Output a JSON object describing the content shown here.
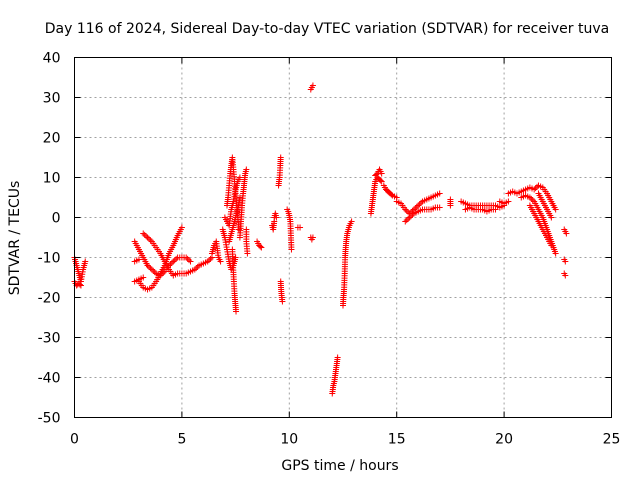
{
  "chart_data": {
    "type": "scatter",
    "title": "Day 116 of 2024, Sidereal Day-to-day VTEC variation (SDTVAR) for receiver tuva",
    "xlabel": "GPS time / hours",
    "ylabel": "SDTVAR / TECUs",
    "xlim": [
      0,
      25
    ],
    "ylim": [
      -50,
      40
    ],
    "xticks": [
      "0",
      "5",
      "10",
      "15",
      "20",
      "25"
    ],
    "xtick_values": [
      0,
      5,
      10,
      15,
      20,
      25
    ],
    "yticks": [
      "40",
      "30",
      "20",
      "10",
      "0",
      "-10",
      "-20",
      "-30",
      "-40",
      "-50"
    ],
    "ytick_values": [
      40,
      30,
      20,
      10,
      0,
      -10,
      -20,
      -30,
      -40,
      -50
    ],
    "grid": true,
    "marker": "+",
    "marker_color": "#ff0000",
    "series": [
      {
        "name": "SDTVAR",
        "tracks": [
          [
            [
              0.0,
              -10
            ],
            [
              0.1,
              -12
            ],
            [
              0.2,
              -14
            ],
            [
              0.3,
              -16
            ],
            [
              0.4,
              -13
            ],
            [
              0.5,
              -11
            ]
          ],
          [
            [
              0.0,
              -16
            ],
            [
              0.1,
              -17
            ],
            [
              0.2,
              -16.5
            ],
            [
              0.3,
              -17
            ]
          ],
          [
            [
              2.8,
              -6
            ],
            [
              3.0,
              -8
            ],
            [
              3.2,
              -10
            ],
            [
              3.4,
              -12
            ],
            [
              3.6,
              -13
            ],
            [
              3.8,
              -14
            ],
            [
              4.0,
              -14.5
            ],
            [
              4.2,
              -13.5
            ],
            [
              4.4,
              -12
            ],
            [
              4.6,
              -11
            ],
            [
              4.8,
              -10
            ],
            [
              5.0,
              -10
            ],
            [
              5.2,
              -10
            ],
            [
              5.4,
              -11
            ]
          ],
          [
            [
              3.0,
              -16
            ],
            [
              3.2,
              -17.5
            ],
            [
              3.4,
              -18
            ],
            [
              3.6,
              -17.5
            ],
            [
              3.8,
              -16
            ],
            [
              4.0,
              -14
            ],
            [
              4.2,
              -12
            ],
            [
              4.4,
              -9
            ],
            [
              4.6,
              -7
            ],
            [
              4.8,
              -4.5
            ],
            [
              5.0,
              -2.5
            ]
          ],
          [
            [
              2.8,
              -11
            ],
            [
              3.0,
              -10.5
            ]
          ],
          [
            [
              3.2,
              -4
            ],
            [
              3.4,
              -5
            ],
            [
              3.6,
              -6
            ],
            [
              3.8,
              -7.5
            ],
            [
              4.0,
              -9
            ],
            [
              4.2,
              -11
            ],
            [
              4.4,
              -13
            ],
            [
              4.6,
              -14.5
            ],
            [
              4.8,
              -14
            ],
            [
              5.0,
              -14
            ],
            [
              5.2,
              -14
            ],
            [
              5.4,
              -13.5
            ],
            [
              5.6,
              -13
            ],
            [
              5.8,
              -12
            ],
            [
              6.0,
              -11.5
            ],
            [
              6.2,
              -11
            ],
            [
              6.4,
              -10
            ]
          ],
          [
            [
              2.8,
              -16
            ],
            [
              3.0,
              -15.5
            ],
            [
              3.2,
              -15
            ]
          ],
          [
            [
              6.4,
              -9
            ],
            [
              6.5,
              -7
            ],
            [
              6.6,
              -6
            ],
            [
              6.7,
              -10
            ],
            [
              6.8,
              -11
            ]
          ],
          [
            [
              6.9,
              -3
            ],
            [
              7.0,
              -5
            ],
            [
              7.1,
              -8
            ],
            [
              7.2,
              -11
            ],
            [
              7.3,
              -13
            ],
            [
              7.4,
              -12
            ],
            [
              7.5,
              -10
            ]
          ],
          [
            [
              7.1,
              3
            ],
            [
              7.15,
              5
            ],
            [
              7.2,
              8
            ],
            [
              7.25,
              11
            ],
            [
              7.3,
              13
            ],
            [
              7.35,
              15
            ],
            [
              7.4,
              12
            ],
            [
              7.45,
              9
            ],
            [
              7.5,
              6
            ],
            [
              7.55,
              3
            ],
            [
              7.6,
              0
            ],
            [
              7.65,
              -3
            ]
          ],
          [
            [
              7.0,
              0
            ],
            [
              7.1,
              -1
            ],
            [
              7.2,
              -2
            ],
            [
              7.3,
              2
            ],
            [
              7.4,
              4
            ],
            [
              7.5,
              7
            ],
            [
              7.6,
              9
            ],
            [
              7.7,
              10
            ]
          ],
          [
            [
              7.35,
              -8
            ],
            [
              7.38,
              -12
            ],
            [
              7.42,
              -16
            ],
            [
              7.45,
              -19
            ],
            [
              7.48,
              -21
            ],
            [
              7.52,
              -23.5
            ]
          ],
          [
            [
              7.7,
              -5
            ],
            [
              7.75,
              -1
            ],
            [
              7.8,
              3
            ],
            [
              7.85,
              6
            ],
            [
              7.9,
              8.5
            ],
            [
              7.95,
              11
            ],
            [
              8.0,
              12
            ]
          ],
          [
            [
              7.2,
              -6
            ],
            [
              7.3,
              -4
            ],
            [
              7.4,
              -2
            ],
            [
              7.5,
              0
            ],
            [
              7.6,
              2
            ],
            [
              7.7,
              5
            ]
          ],
          [
            [
              8.0,
              -3
            ],
            [
              8.0,
              -6
            ],
            [
              8.05,
              -9
            ]
          ],
          [
            [
              8.5,
              -6
            ],
            [
              8.6,
              -7
            ],
            [
              8.7,
              -7.5
            ]
          ],
          [
            [
              9.2,
              -2
            ],
            [
              9.25,
              -3
            ],
            [
              9.3,
              -1
            ]
          ],
          [
            [
              9.3,
              0
            ],
            [
              9.35,
              1
            ],
            [
              9.4,
              0
            ]
          ],
          [
            [
              9.5,
              8
            ],
            [
              9.52,
              9
            ],
            [
              9.55,
              10
            ],
            [
              9.58,
              13
            ],
            [
              9.6,
              15
            ]
          ],
          [
            [
              9.6,
              -16
            ],
            [
              9.62,
              -18
            ],
            [
              9.65,
              -20
            ],
            [
              9.68,
              -21
            ]
          ],
          [
            [
              9.9,
              2
            ],
            [
              9.95,
              1.5
            ],
            [
              10.0,
              0.5
            ],
            [
              10.05,
              -1
            ],
            [
              10.1,
              -8
            ]
          ],
          [
            [
              10.4,
              -2.5
            ],
            [
              10.5,
              -2.5
            ]
          ],
          [
            [
              11.0,
              -5
            ],
            [
              11.05,
              -5.5
            ],
            [
              11.1,
              -5
            ]
          ],
          [
            [
              11.0,
              32
            ],
            [
              11.05,
              32.5
            ],
            [
              11.1,
              33
            ]
          ],
          [
            [
              12.0,
              -44
            ],
            [
              12.05,
              -42
            ],
            [
              12.1,
              -41
            ],
            [
              12.15,
              -39
            ],
            [
              12.2,
              -37
            ],
            [
              12.25,
              -35
            ]
          ],
          [
            [
              12.5,
              -22
            ],
            [
              12.52,
              -20
            ],
            [
              12.55,
              -18
            ],
            [
              12.58,
              -14
            ],
            [
              12.6,
              -10
            ],
            [
              12.62,
              -8
            ],
            [
              12.65,
              -6
            ],
            [
              12.7,
              -4
            ],
            [
              12.8,
              -2
            ],
            [
              12.9,
              -1
            ]
          ],
          [
            [
              13.8,
              1
            ],
            [
              13.85,
              3
            ],
            [
              13.9,
              5
            ],
            [
              13.95,
              7
            ],
            [
              14.0,
              9
            ],
            [
              14.1,
              10
            ],
            [
              14.2,
              9.5
            ],
            [
              14.3,
              9
            ]
          ],
          [
            [
              14.0,
              10.5
            ],
            [
              14.1,
              11
            ],
            [
              14.2,
              12
            ],
            [
              14.3,
              11
            ]
          ],
          [
            [
              14.4,
              8
            ],
            [
              14.5,
              7
            ],
            [
              14.6,
              6.5
            ],
            [
              14.7,
              6
            ],
            [
              14.8,
              5.5
            ],
            [
              15.0,
              5
            ]
          ],
          [
            [
              15.0,
              4
            ],
            [
              15.2,
              3.5
            ],
            [
              15.4,
              2
            ],
            [
              15.6,
              1
            ],
            [
              15.8,
              2
            ],
            [
              16.0,
              3
            ],
            [
              16.2,
              4
            ],
            [
              16.4,
              4.5
            ],
            [
              16.6,
              5
            ],
            [
              16.8,
              5.5
            ],
            [
              17.0,
              6
            ]
          ],
          [
            [
              15.4,
              -1
            ],
            [
              15.6,
              0
            ],
            [
              15.8,
              1
            ],
            [
              16.0,
              1.5
            ],
            [
              16.2,
              2
            ],
            [
              16.4,
              2
            ],
            [
              16.6,
              2
            ],
            [
              16.8,
              2.5
            ],
            [
              17.0,
              2.5
            ]
          ],
          [
            [
              17.5,
              3
            ],
            [
              17.5,
              4.5
            ]
          ],
          [
            [
              18.0,
              4
            ],
            [
              18.2,
              3.5
            ],
            [
              18.4,
              3
            ],
            [
              18.6,
              3
            ],
            [
              18.8,
              3
            ],
            [
              19.0,
              3
            ],
            [
              19.2,
              3
            ],
            [
              19.4,
              3
            ],
            [
              19.6,
              3
            ],
            [
              19.8,
              2.5
            ],
            [
              20.0,
              3
            ]
          ],
          [
            [
              18.2,
              2
            ],
            [
              18.4,
              2.5
            ],
            [
              18.6,
              2
            ],
            [
              18.8,
              2
            ],
            [
              19.0,
              2
            ],
            [
              19.2,
              1.5
            ],
            [
              19.4,
              2
            ],
            [
              19.6,
              2
            ]
          ],
          [
            [
              19.8,
              4
            ],
            [
              20.0,
              3.5
            ],
            [
              20.2,
              4
            ]
          ],
          [
            [
              20.2,
              6
            ],
            [
              20.4,
              6.5
            ],
            [
              20.6,
              6
            ],
            [
              20.8,
              6.5
            ],
            [
              21.0,
              7
            ],
            [
              21.2,
              7.5
            ],
            [
              21.4,
              7
            ],
            [
              21.6,
              8
            ],
            [
              21.8,
              7.5
            ],
            [
              22.0,
              6
            ],
            [
              22.2,
              4
            ],
            [
              22.4,
              2
            ]
          ],
          [
            [
              20.8,
              5
            ],
            [
              21.0,
              5.5
            ],
            [
              21.2,
              5
            ],
            [
              21.4,
              4
            ],
            [
              21.6,
              2
            ],
            [
              21.8,
              0
            ],
            [
              22.0,
              -3
            ],
            [
              22.2,
              -6
            ],
            [
              22.4,
              -9
            ]
          ],
          [
            [
              21.2,
              3
            ],
            [
              21.4,
              1
            ],
            [
              21.6,
              -1
            ],
            [
              21.8,
              -3
            ],
            [
              22.0,
              -5
            ],
            [
              22.2,
              -7
            ]
          ],
          [
            [
              21.6,
              6
            ],
            [
              21.8,
              4
            ],
            [
              22.0,
              2
            ],
            [
              22.2,
              0
            ]
          ],
          [
            [
              22.8,
              -3
            ],
            [
              22.85,
              -3.5
            ],
            [
              22.9,
              -4
            ]
          ],
          [
            [
              22.8,
              -10.5
            ],
            [
              22.85,
              -11
            ]
          ],
          [
            [
              22.8,
              -14
            ],
            [
              22.85,
              -14.5
            ]
          ]
        ]
      }
    ]
  }
}
